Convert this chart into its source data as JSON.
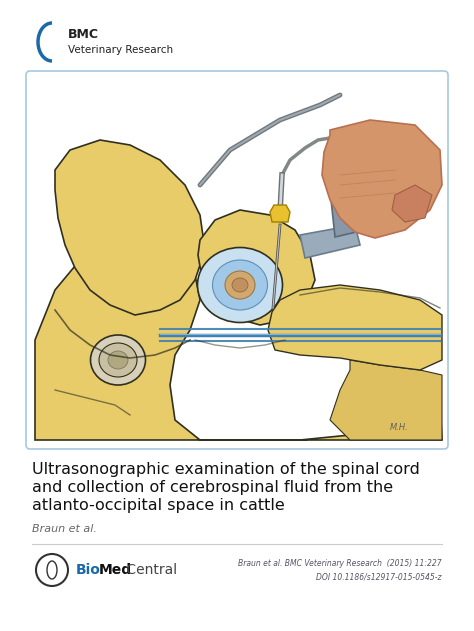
{
  "bg_color": "#ffffff",
  "border_color": "#a8c8e0",
  "image_bg": "#ffffff",
  "logo_bmc_text": "BMC",
  "logo_subtitle": "Veterinary Research",
  "logo_arc_color": "#1a6aaa",
  "logo_text_color": "#222222",
  "title_line1": "Ultrasonographic examination of the spinal cord",
  "title_line2": "and collection of cerebrospinal fluid from the",
  "title_line3": "atlanto-occipital space in cattle",
  "author_text": "Braun et al.",
  "footer_citation1": "Braun et al. BMC Veterinary Research  (2015) 11:227",
  "footer_citation2": "DOI 10.1186/s12917-015-0545-z",
  "footer_text_color": "#555566",
  "title_color": "#111111",
  "author_color": "#666666",
  "yellow_body": "#e8cc6a",
  "yellow_dark": "#c8a830",
  "yellow_light": "#f0dc90",
  "blue_line": "#4080b0",
  "blue_light": "#80b0d0",
  "probe_gray": "#9aa8b8",
  "probe_dark": "#6a7880",
  "skin_color": "#d4956a",
  "skin_dark": "#b87050",
  "needle_color": "#888888",
  "hub_yellow": "#e8c030",
  "cord_color": "#c89060",
  "eye_white": "#e8e0d0",
  "black_line": "#303020"
}
